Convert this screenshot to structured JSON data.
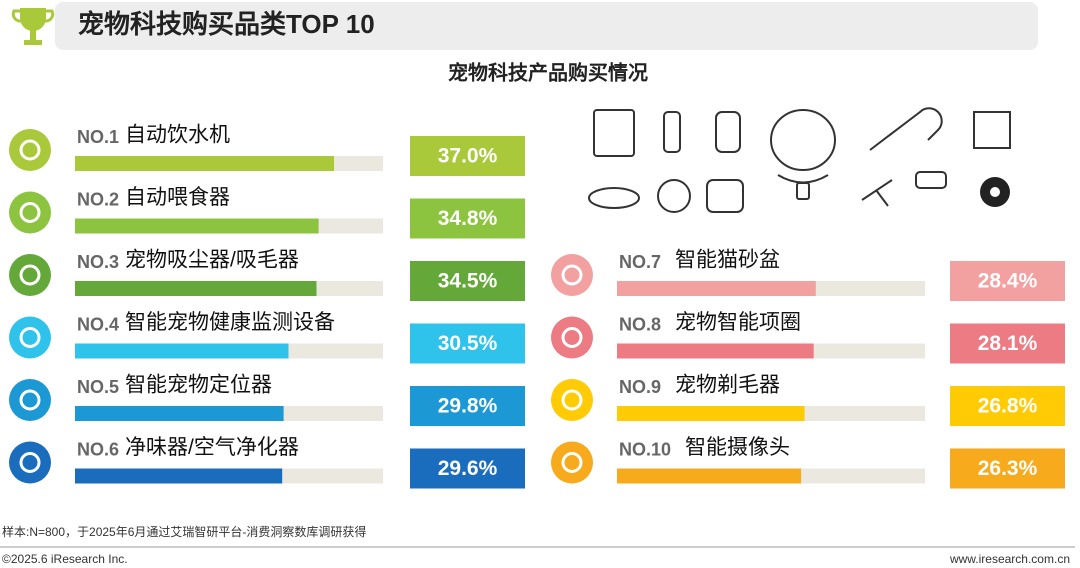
{
  "header": {
    "title": "宠物科技购买品类TOP 10"
  },
  "chart_data": {
    "type": "bar",
    "title": "宠物科技产品购买情况",
    "ranks": [
      "NO.1",
      "NO.2",
      "NO.3",
      "NO.4",
      "NO.5",
      "NO.6",
      "NO.7",
      "NO.8",
      "NO.9",
      "NO.10"
    ],
    "categories": [
      "自动饮水机",
      "自动喂食器",
      "宠物吸尘器/吸毛器",
      "智能宠物健康监测设备",
      "智能宠物定位器",
      "净味器/空气净化器",
      "智能猫砂盆",
      "宠物智能项圈",
      "宠物剃毛器",
      "智能摄像头"
    ],
    "values": [
      37.0,
      34.8,
      34.5,
      30.5,
      29.8,
      29.6,
      28.4,
      28.1,
      26.8,
      26.3
    ],
    "value_labels": [
      "37.0%",
      "34.8%",
      "34.5%",
      "30.5%",
      "29.8%",
      "29.6%",
      "28.4%",
      "28.1%",
      "26.8%",
      "26.3%"
    ],
    "colors": [
      "#a9c83a",
      "#8dc43f",
      "#65a83a",
      "#2fc3ec",
      "#1c98d4",
      "#1a6cbd",
      "#f3a0a0",
      "#ec7b83",
      "#ffcb05",
      "#f6aa1c"
    ],
    "xlim": [
      0,
      44
    ]
  },
  "footer": {
    "note": "样本:N=800，于2025年6月通过艾瑞智研平台-消费洞察数库调研获得",
    "copyright": "©2025.6 iResearch Inc.",
    "url": "www.iresearch.com.cn"
  }
}
